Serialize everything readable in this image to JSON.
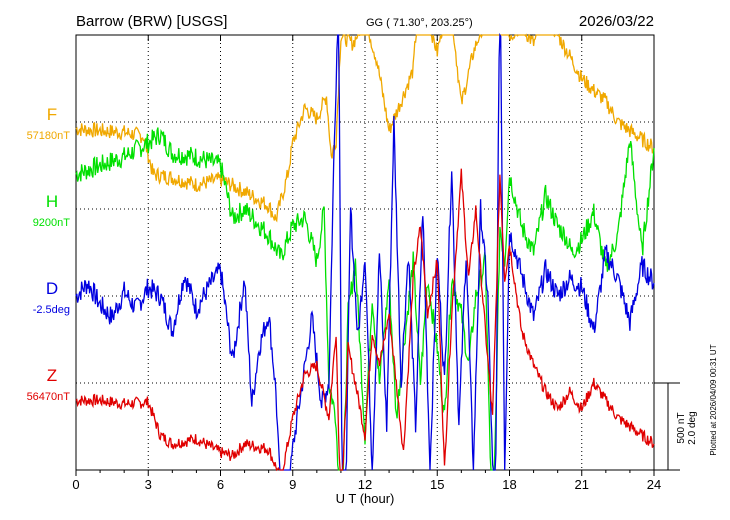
{
  "header": {
    "station": "Barrow (BRW)  [USGS]",
    "coords": "GG ( 71.30°, 203.25°)",
    "date": "2026/03/22"
  },
  "footer": {
    "plotted": "Plotted at 2026/04/09 00:31  UT",
    "scale_nt": "500 nT",
    "scale_deg": "2.0 deg"
  },
  "chart_data": {
    "type": "line",
    "xlabel": "U T (hour)",
    "xlim": [
      0,
      24
    ],
    "xticks": [
      0,
      3,
      6,
      9,
      12,
      15,
      18,
      21,
      24
    ],
    "grid": true,
    "series": [
      {
        "name": "F",
        "baseline_label": "57180nT",
        "color": "#f0a800",
        "x": [
          0,
          1,
          2,
          2.8,
          3.2,
          4,
          5,
          6,
          7,
          8,
          8.3,
          8.8,
          9,
          9.5,
          10,
          10.4,
          10.6,
          10.8,
          11,
          11.5,
          12,
          12.5,
          13,
          13.5,
          14,
          14.3,
          14.6,
          15,
          15.5,
          16,
          16.5,
          17,
          17.3,
          17.6,
          18,
          18.5,
          19,
          19.5,
          20,
          20.5,
          21,
          21.5,
          22,
          22.5,
          23,
          23.5,
          24
        ],
        "y": [
          -40,
          -50,
          -60,
          -80,
          -300,
          -320,
          -360,
          -330,
          -400,
          -480,
          -560,
          -300,
          -120,
          80,
          20,
          150,
          -200,
          -100,
          500,
          450,
          600,
          350,
          -50,
          120,
          300,
          850,
          600,
          400,
          750,
          100,
          400,
          600,
          850,
          700,
          500,
          550,
          450,
          600,
          500,
          380,
          250,
          180,
          120,
          0,
          -50,
          -100,
          -150
        ]
      },
      {
        "name": "H",
        "baseline_label": "9200nT",
        "color": "#00e000",
        "x": [
          0,
          1,
          2,
          3,
          3.5,
          4,
          5,
          6,
          6.5,
          7,
          8,
          8.5,
          9,
          9.5,
          10,
          10.3,
          10.5,
          10.8,
          11,
          11.3,
          11.6,
          12,
          12.3,
          12.6,
          13,
          13.3,
          13.6,
          14,
          14.3,
          14.6,
          15,
          15.3,
          15.6,
          16,
          16.3,
          16.6,
          17,
          17.3,
          17.6,
          17.8,
          18,
          18.5,
          19,
          19.5,
          20,
          20.3,
          20.6,
          21,
          21.5,
          22,
          22.5,
          23,
          23.5,
          24
        ],
        "y": [
          200,
          250,
          300,
          380,
          430,
          320,
          300,
          250,
          -50,
          0,
          -150,
          -280,
          -100,
          -50,
          -300,
          0,
          -1000,
          -1200,
          -2000,
          -600,
          -300,
          -1300,
          -500,
          -1000,
          -400,
          -1200,
          -800,
          -300,
          -1000,
          -400,
          -800,
          -1200,
          -400,
          -600,
          -900,
          -500,
          -300,
          -2000,
          -100,
          -300,
          200,
          -100,
          -250,
          80,
          -100,
          -150,
          -250,
          -180,
          -20,
          -350,
          -150,
          400,
          -250,
          350
        ]
      },
      {
        "name": "D",
        "baseline_label": "-2.5deg",
        "color": "#0000e0",
        "x": [
          0,
          0.5,
          1,
          1.5,
          2,
          2.5,
          3,
          3.5,
          4,
          4.5,
          5,
          5.5,
          6,
          6.5,
          7,
          7.3,
          7.6,
          8,
          8.3,
          8.6,
          9,
          9.4,
          9.8,
          10.2,
          10.5,
          10.7,
          10.9,
          11.1,
          11.4,
          11.7,
          12,
          12.3,
          12.6,
          12.9,
          13.2,
          13.5,
          13.8,
          14.1,
          14.4,
          14.7,
          15,
          15.3,
          15.6,
          15.9,
          16.2,
          16.5,
          16.8,
          17.1,
          17.4,
          17.6,
          17.8,
          18,
          18.5,
          19,
          19.5,
          20,
          20.5,
          21,
          21.5,
          22,
          22.5,
          23,
          23.5,
          24
        ],
        "y": [
          0,
          0.3,
          -0.2,
          -0.5,
          0.1,
          -0.3,
          0.2,
          0,
          -0.8,
          0.5,
          -0.3,
          0.2,
          0.6,
          -1.5,
          0.4,
          -2.5,
          -1.2,
          -0.4,
          -2.2,
          -6,
          -3.5,
          -2,
          -0.5,
          -2.5,
          -2,
          3,
          7,
          -8,
          2,
          -1,
          1,
          -4,
          1,
          -3,
          4,
          -2,
          1,
          -3,
          2,
          -4,
          1,
          -2,
          3,
          -3,
          1,
          -4,
          2,
          0,
          -6,
          8,
          -4,
          1.5,
          0.5,
          -0.5,
          0.6,
          0,
          0.4,
          0.2,
          -0.8,
          1,
          0.4,
          -0.6,
          0.7,
          0.3
        ]
      },
      {
        "name": "Z",
        "baseline_label": "56470nT",
        "color": "#e00000",
        "x": [
          0,
          1,
          2,
          3,
          3.5,
          4,
          5,
          6,
          6.5,
          7,
          8,
          8.5,
          8.8,
          9,
          9.5,
          10,
          10.5,
          10.8,
          11,
          11.3,
          11.6,
          12,
          12.3,
          12.6,
          13,
          13.3,
          13.6,
          14,
          14.3,
          14.6,
          15,
          15.3,
          15.6,
          16,
          16.3,
          16.6,
          17,
          17.3,
          17.6,
          17.8,
          18,
          18.5,
          19,
          19.5,
          20,
          20.5,
          21,
          21.5,
          22,
          22.5,
          23,
          23.5,
          24
        ],
        "y": [
          -100,
          -100,
          -120,
          -110,
          -300,
          -350,
          -320,
          -400,
          -420,
          -350,
          -380,
          -550,
          -350,
          -200,
          50,
          100,
          -200,
          300,
          -800,
          200,
          0,
          -300,
          300,
          100,
          400,
          0,
          -400,
          600,
          900,
          400,
          700,
          -500,
          400,
          1200,
          600,
          1000,
          300,
          -200,
          1200,
          600,
          800,
          300,
          100,
          -50,
          -150,
          -50,
          -150,
          0,
          -100,
          -200,
          -250,
          -300,
          -350
        ]
      }
    ]
  }
}
